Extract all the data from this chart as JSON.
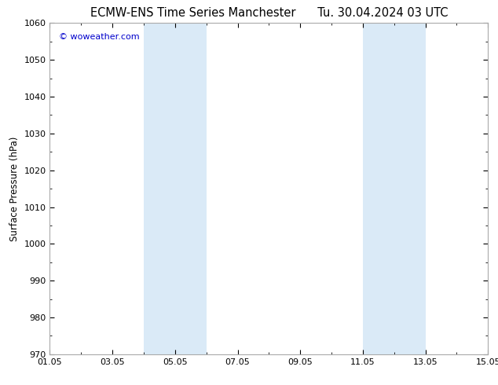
{
  "title_left": "ECMW-ENS Time Series Manchester",
  "title_right": "Tu. 30.04.2024 03 UTC",
  "ylabel": "Surface Pressure (hPa)",
  "ylim": [
    970,
    1060
  ],
  "yticks": [
    970,
    980,
    990,
    1000,
    1010,
    1020,
    1030,
    1040,
    1050,
    1060
  ],
  "xlim": [
    0,
    14
  ],
  "xtick_positions": [
    0,
    2,
    4,
    6,
    8,
    10,
    12,
    14
  ],
  "xtick_labels": [
    "01.05",
    "03.05",
    "05.05",
    "07.05",
    "09.05",
    "11.05",
    "13.05",
    "15.05"
  ],
  "shaded_bands": [
    {
      "xmin": 3.0,
      "xmax": 4.0
    },
    {
      "xmin": 4.0,
      "xmax": 5.0
    },
    {
      "xmin": 10.0,
      "xmax": 11.0
    },
    {
      "xmin": 11.0,
      "xmax": 12.0
    }
  ],
  "shaded_color": "#daeaf7",
  "watermark": "© woweather.com",
  "watermark_color": "#0000cc",
  "background_color": "#ffffff",
  "plot_bg_color": "#ffffff",
  "grid_color": "#cccccc",
  "border_color": "#aaaaaa",
  "title_fontsize": 10.5,
  "axis_label_fontsize": 8.5,
  "tick_fontsize": 8
}
